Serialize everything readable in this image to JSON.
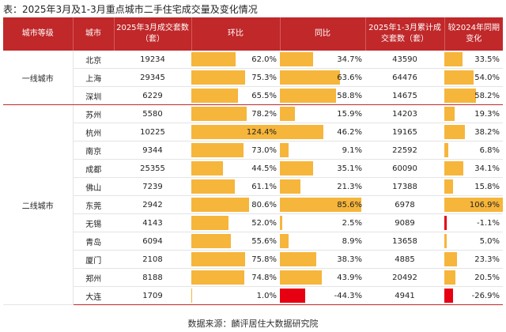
{
  "title": "表：2025年3月及1-3月重点城市二手住宅成交量及变化情况",
  "headers": {
    "tier": "城市等级",
    "city": "城市",
    "mar_volume": "2025年3月成交套数（套）",
    "mom": "环比",
    "yoy": "同比",
    "q1_volume": "2025年1-3月累计成交套数（套）",
    "q1_yoy": "较2024年同期变化"
  },
  "tiers": {
    "tier1": "一线城市",
    "tier2": "二线城市"
  },
  "rows": [
    {
      "tier": "tier1",
      "city": "北京",
      "mar_volume": "19234",
      "mom": "62.0%",
      "mom_v": 62.0,
      "yoy": "34.7%",
      "yoy_v": 34.7,
      "q1_volume": "43590",
      "q1_yoy": "33.5%",
      "q1_yoy_v": 33.5
    },
    {
      "tier": "tier1",
      "city": "上海",
      "mar_volume": "29345",
      "mom": "75.3%",
      "mom_v": 75.3,
      "yoy": "63.6%",
      "yoy_v": 63.6,
      "q1_volume": "64476",
      "q1_yoy": "54.0%",
      "q1_yoy_v": 54.0
    },
    {
      "tier": "tier1",
      "city": "深圳",
      "mar_volume": "6229",
      "mom": "65.5%",
      "mom_v": 65.5,
      "yoy": "58.8%",
      "yoy_v": 58.8,
      "q1_volume": "14675",
      "q1_yoy": "58.2%",
      "q1_yoy_v": 58.2
    },
    {
      "tier": "tier2",
      "city": "苏州",
      "mar_volume": "5580",
      "mom": "78.2%",
      "mom_v": 78.2,
      "yoy": "15.9%",
      "yoy_v": 15.9,
      "q1_volume": "14203",
      "q1_yoy": "19.3%",
      "q1_yoy_v": 19.3
    },
    {
      "tier": "tier2",
      "city": "杭州",
      "mar_volume": "10225",
      "mom": "124.4%",
      "mom_v": 124.4,
      "yoy": "46.2%",
      "yoy_v": 46.2,
      "q1_volume": "19165",
      "q1_yoy": "38.2%",
      "q1_yoy_v": 38.2
    },
    {
      "tier": "tier2",
      "city": "南京",
      "mar_volume": "9344",
      "mom": "73.0%",
      "mom_v": 73.0,
      "yoy": "9.1%",
      "yoy_v": 9.1,
      "q1_volume": "22592",
      "q1_yoy": "6.8%",
      "q1_yoy_v": 6.8
    },
    {
      "tier": "tier2",
      "city": "成都",
      "mar_volume": "25355",
      "mom": "44.5%",
      "mom_v": 44.5,
      "yoy": "35.1%",
      "yoy_v": 35.1,
      "q1_volume": "60090",
      "q1_yoy": "34.1%",
      "q1_yoy_v": 34.1
    },
    {
      "tier": "tier2",
      "city": "佛山",
      "mar_volume": "7239",
      "mom": "61.1%",
      "mom_v": 61.1,
      "yoy": "21.3%",
      "yoy_v": 21.3,
      "q1_volume": "17388",
      "q1_yoy": "15.8%",
      "q1_yoy_v": 15.8
    },
    {
      "tier": "tier2",
      "city": "东莞",
      "mar_volume": "2942",
      "mom": "80.6%",
      "mom_v": 80.6,
      "yoy": "85.6%",
      "yoy_v": 85.6,
      "q1_volume": "6978",
      "q1_yoy": "106.9%",
      "q1_yoy_v": 106.9
    },
    {
      "tier": "tier2",
      "city": "无锡",
      "mar_volume": "4143",
      "mom": "52.0%",
      "mom_v": 52.0,
      "yoy": "2.5%",
      "yoy_v": 2.5,
      "q1_volume": "9089",
      "q1_yoy": "-1.1%",
      "q1_yoy_v": -1.1
    },
    {
      "tier": "tier2",
      "city": "青岛",
      "mar_volume": "6094",
      "mom": "55.6%",
      "mom_v": 55.6,
      "yoy": "8.9%",
      "yoy_v": 8.9,
      "q1_volume": "13658",
      "q1_yoy": "5.0%",
      "q1_yoy_v": 5.0
    },
    {
      "tier": "tier2",
      "city": "厦门",
      "mar_volume": "2108",
      "mom": "75.8%",
      "mom_v": 75.8,
      "yoy": "38.3%",
      "yoy_v": 38.3,
      "q1_volume": "4885",
      "q1_yoy": "23.3%",
      "q1_yoy_v": 23.3
    },
    {
      "tier": "tier2",
      "city": "郑州",
      "mar_volume": "8188",
      "mom": "74.8%",
      "mom_v": 74.8,
      "yoy": "43.9%",
      "yoy_v": 43.9,
      "q1_volume": "20492",
      "q1_yoy": "20.5%",
      "q1_yoy_v": 20.5
    },
    {
      "tier": "tier2",
      "city": "大连",
      "mar_volume": "1709",
      "mom": "1.0%",
      "mom_v": 1.0,
      "yoy": "-44.3%",
      "yoy_v": -44.3,
      "q1_volume": "4941",
      "q1_yoy": "-26.9%",
      "q1_yoy_v": -26.9
    }
  ],
  "bar_colors": {
    "positive": "#f6b53b",
    "negative": "#e60012",
    "header": "#c0282a"
  },
  "source": "数据来源：麟评居住大数据研究院"
}
